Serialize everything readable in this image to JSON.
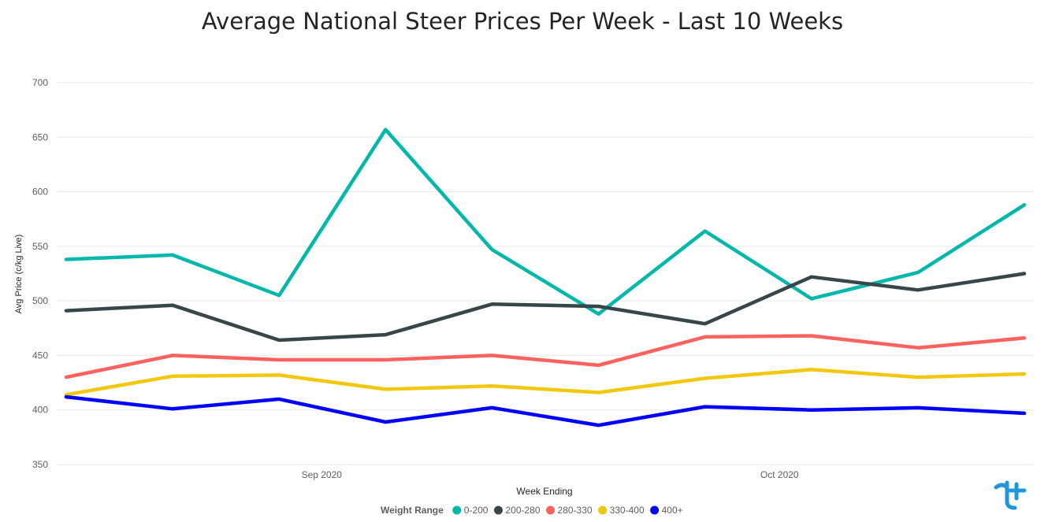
{
  "chart_data": {
    "type": "line",
    "title": "Average National Steer Prices Per Week - Last 10 Weeks",
    "xlabel": "Week Ending",
    "ylabel": "Avg Price (c/kg Live)",
    "ylim": [
      350,
      700
    ],
    "yticks": [
      700,
      650,
      600,
      550,
      500,
      450,
      400,
      350
    ],
    "x_tick_labels": [
      "Sep 2020",
      "Oct 2020"
    ],
    "x_tick_index": [
      2.4,
      6.7
    ],
    "grid": true,
    "legend": {
      "title": "Weight Range",
      "placement": "bottom-center"
    },
    "series": [
      {
        "name": "0-200",
        "color": "#01B8AA",
        "values": [
          538,
          542,
          505,
          657,
          547,
          488,
          564,
          502,
          526,
          588
        ]
      },
      {
        "name": "200-280",
        "color": "#374649",
        "values": [
          491,
          496,
          464,
          469,
          497,
          495,
          479,
          522,
          510,
          525
        ]
      },
      {
        "name": "280-330",
        "color": "#FD625E",
        "values": [
          430,
          450,
          446,
          446,
          450,
          441,
          467,
          468,
          457,
          466
        ]
      },
      {
        "name": "330-400",
        "color": "#F2C80F",
        "values": [
          414,
          431,
          432,
          419,
          422,
          416,
          429,
          437,
          430,
          433
        ]
      },
      {
        "name": "400+",
        "color": "#0000FF",
        "values": [
          412,
          401,
          410,
          389,
          402,
          386,
          403,
          400,
          402,
          397
        ]
      }
    ]
  },
  "logo": {
    "icon": "brand-logo-icon",
    "color": "#2196d8"
  }
}
